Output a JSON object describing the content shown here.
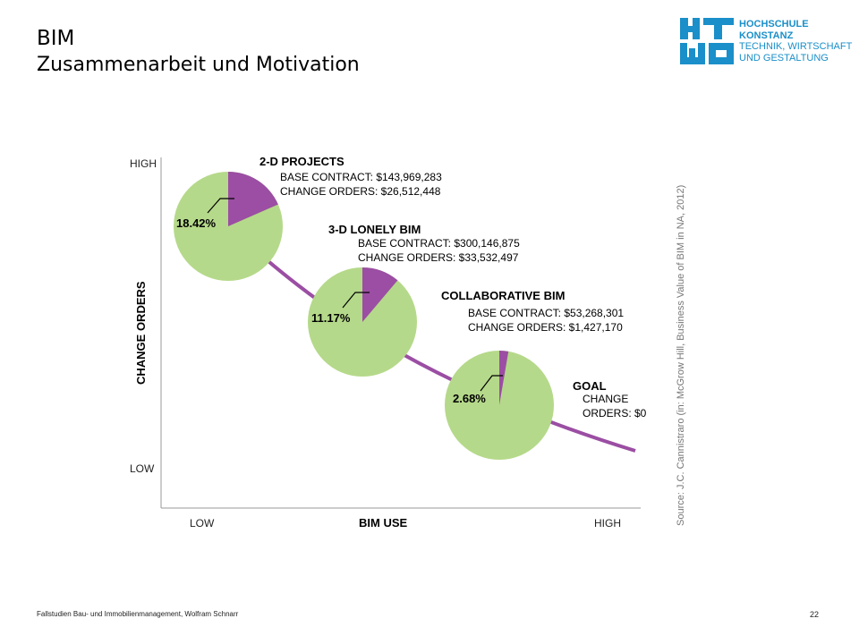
{
  "slide": {
    "title": "BIM",
    "subtitle": "Zusammenarbeit und Motivation",
    "footer": "Fallstudien Bau- und Immobilienmanagement, Wolfram Schnarr",
    "page_number": "22"
  },
  "logo": {
    "lines": [
      "HOCHSCHULE",
      "KONSTANZ",
      "TECHNIK, WIRTSCHAFT",
      "UND GESTALTUNG"
    ],
    "color": "#1a8fc9"
  },
  "chart_data": {
    "type": "pie",
    "xlabel": "BIM USE",
    "ylabel": "CHANGE ORDERS",
    "x_ticks": [
      "LOW",
      "HIGH"
    ],
    "y_ticks": [
      "HIGH",
      "LOW"
    ],
    "source": "Source: J.C. Cannistraro (in: McGrow Hill, Business Value of BIM in NA, 2012)",
    "colors": {
      "slice": "#9b4ea3",
      "rest": "#b5d98a",
      "curve": "#9b4ea3"
    },
    "series": [
      {
        "name": "2-D PROJECTS",
        "percent": 18.42,
        "percent_label": "18.42%",
        "lines": [
          "BASE CONTRACT: $143,969,283",
          "CHANGE ORDERS: $26,512,448"
        ]
      },
      {
        "name": "3-D LONELY BIM",
        "percent": 11.17,
        "percent_label": "11.17%",
        "lines": [
          "BASE CONTRACT: $300,146,875",
          "CHANGE ORDERS: $33,532,497"
        ]
      },
      {
        "name": "COLLABORATIVE BIM",
        "percent": 2.68,
        "percent_label": "2.68%",
        "lines": [
          "BASE CONTRACT: $53,268,301",
          "CHANGE ORDERS: $1,427,170"
        ]
      },
      {
        "name": "GOAL",
        "percent": 0,
        "percent_label": "",
        "lines": [
          "CHANGE",
          "ORDERS: $0"
        ]
      }
    ]
  }
}
